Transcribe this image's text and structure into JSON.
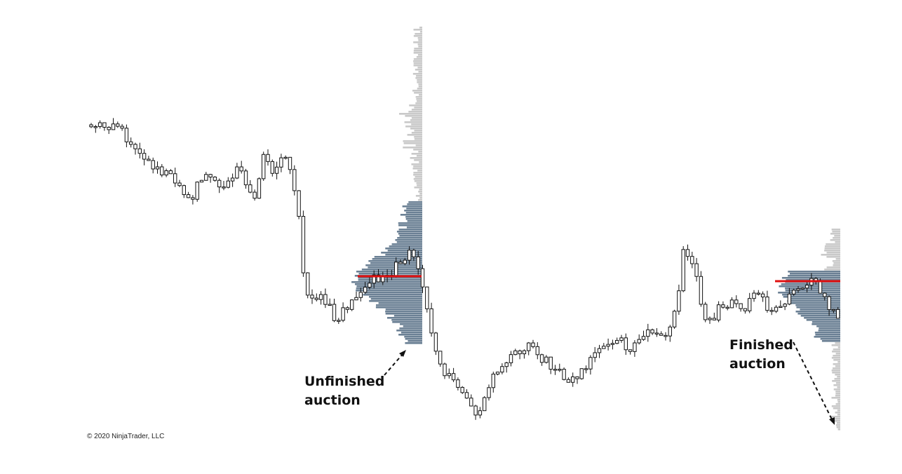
{
  "annotations": [
    {
      "lines": [
        "Unfinished",
        "auction"
      ]
    },
    {
      "lines": [
        "Finished",
        "auction"
      ]
    }
  ],
  "copyright": "© 2020 NinjaTrader, LLC"
}
